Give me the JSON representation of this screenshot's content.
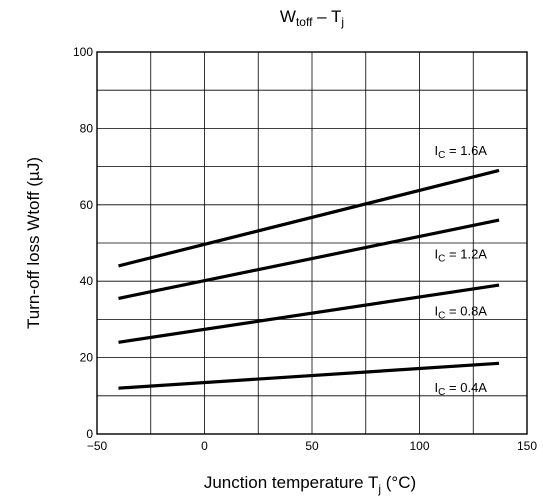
{
  "chart_data": {
    "type": "line",
    "title": {
      "main": "W",
      "sub": "toff",
      "rest": " – T",
      "sub2": "j"
    },
    "xlabel": {
      "main": "Junction temperature    T",
      "sub": "j",
      "unit": "   (°C)"
    },
    "ylabel": {
      "main": "Turn-off loss    Wtoff    (µJ)"
    },
    "xlim": [
      -50,
      150
    ],
    "ylim": [
      0,
      100
    ],
    "x_ticks": [
      -50,
      0,
      50,
      100,
      150
    ],
    "x_tick_labels": [
      "−50",
      "0",
      "50",
      "100",
      "150"
    ],
    "y_ticks": [
      0,
      20,
      40,
      60,
      80,
      100
    ],
    "y_tick_labels": [
      "0",
      "20",
      "40",
      "60",
      "80",
      "100"
    ],
    "x_grid_step": 25,
    "y_grid_step": 10,
    "grid": true,
    "series": [
      {
        "name": "IC = 1.6A",
        "label_main": "I",
        "label_sub": "C",
        "label_rest": " = 1.6A",
        "x": [
          -40,
          137
        ],
        "y": [
          44,
          69
        ]
      },
      {
        "name": "IC = 1.2A",
        "label_main": "I",
        "label_sub": "C",
        "label_rest": " = 1.2A",
        "x": [
          -40,
          137
        ],
        "y": [
          35.5,
          56
        ]
      },
      {
        "name": "IC = 0.8A",
        "label_main": "I",
        "label_sub": "C",
        "label_rest": " = 0.8A",
        "x": [
          -40,
          137
        ],
        "y": [
          24,
          39
        ]
      },
      {
        "name": "IC = 0.4A",
        "label_main": "I",
        "label_sub": "C",
        "label_rest": " = 0.4A",
        "x": [
          -40,
          137
        ],
        "y": [
          12,
          18.5
        ]
      }
    ],
    "series_label_pos": [
      {
        "x": 107,
        "y": 73
      },
      {
        "x": 107,
        "y": 46
      },
      {
        "x": 107,
        "y": 31
      },
      {
        "x": 107,
        "y": 11
      }
    ]
  }
}
